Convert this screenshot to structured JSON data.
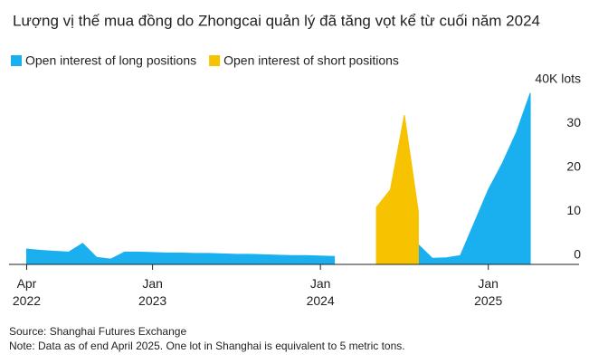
{
  "chart_data": {
    "type": "area",
    "title": "Lượng vị thế mua đồng do Zhongcai quản lý đã tăng vọt kể từ cuối năm 2024",
    "x": [
      "2022-04",
      "2022-05",
      "2022-06",
      "2022-07",
      "2022-08",
      "2022-09",
      "2022-10",
      "2022-11",
      "2022-12",
      "2023-01",
      "2023-02",
      "2023-03",
      "2023-04",
      "2023-05",
      "2023-06",
      "2023-07",
      "2023-08",
      "2023-09",
      "2023-10",
      "2023-11",
      "2023-12",
      "2024-01",
      "2024-02",
      "2024-03",
      "2024-04",
      "2024-05",
      "2024-06",
      "2024-07",
      "2024-08",
      "2024-09",
      "2024-10",
      "2024-11",
      "2024-12",
      "2025-01",
      "2025-02",
      "2025-03",
      "2025-04"
    ],
    "series": [
      {
        "name": "Open interest of long positions",
        "color": "#1ab0f0",
        "values": [
          3.5,
          3.2,
          3.0,
          2.8,
          4.8,
          1.6,
          1.2,
          2.8,
          2.8,
          2.7,
          2.6,
          2.6,
          2.5,
          2.5,
          2.4,
          2.3,
          2.3,
          2.2,
          2.1,
          2.0,
          2.0,
          1.9,
          1.8,
          null,
          null,
          null,
          null,
          null,
          4.5,
          1.4,
          1.5,
          2.0,
          9.5,
          17,
          23,
          30,
          39
        ]
      },
      {
        "name": "Open interest of short positions",
        "color": "#f7c300",
        "values": [
          null,
          null,
          null,
          null,
          null,
          null,
          null,
          null,
          null,
          null,
          null,
          null,
          null,
          null,
          null,
          null,
          null,
          null,
          null,
          null,
          null,
          null,
          null,
          null,
          null,
          13,
          17,
          34,
          12,
          null,
          null,
          null,
          null,
          null,
          null,
          null,
          null
        ]
      }
    ],
    "xlim": [
      "2022-03",
      "2025-06"
    ],
    "xticks": [
      {
        "value": "2022-04",
        "label": "Apr 2022"
      },
      {
        "value": "2023-01",
        "label": "Jan 2023"
      },
      {
        "value": "2024-01",
        "label": "Jan 2024"
      },
      {
        "value": "2025-01",
        "label": "Jan 2025"
      }
    ],
    "ylim": [
      0,
      40
    ],
    "yticks": [
      0,
      10,
      20,
      30,
      {
        "value": 40,
        "label": "40K lots"
      }
    ],
    "grid": false,
    "source": "Source: Shanghai Futures Exchange",
    "note": "Note: Data as of end April 2025. One lot in Shanghai is equivalent to 5 metric tons."
  }
}
